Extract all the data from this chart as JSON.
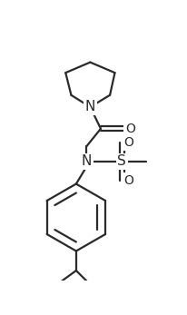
{
  "background_color": "#ffffff",
  "line_color": "#2a2a2a",
  "line_width": 1.6,
  "figsize": [
    2.06,
    3.47
  ],
  "dpi": 100,
  "xlim": [
    0,
    206
  ],
  "ylim": [
    0,
    347
  ]
}
